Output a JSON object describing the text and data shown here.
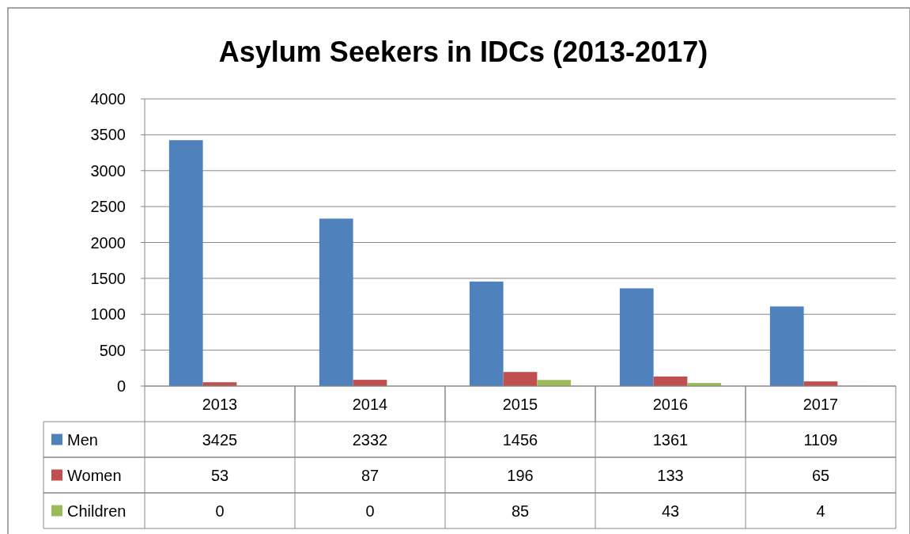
{
  "chart_data": {
    "type": "bar",
    "title": "Asylum Seekers in IDCs (2013-2017)",
    "categories": [
      "2013",
      "2014",
      "2015",
      "2016",
      "2017"
    ],
    "series": [
      {
        "name": "Men",
        "color": "#4f81bd",
        "values": [
          3425,
          2332,
          1456,
          1361,
          1109
        ]
      },
      {
        "name": "Women",
        "color": "#c0504d",
        "values": [
          53,
          87,
          196,
          133,
          65
        ]
      },
      {
        "name": "Children",
        "color": "#9bbb59",
        "values": [
          0,
          0,
          85,
          43,
          4
        ]
      }
    ],
    "ylim": [
      0,
      4000
    ],
    "yticks": [
      0,
      500,
      1000,
      1500,
      2000,
      2500,
      3000,
      3500,
      4000
    ],
    "grid": "y",
    "legend": "bottom",
    "data_labels": true
  }
}
